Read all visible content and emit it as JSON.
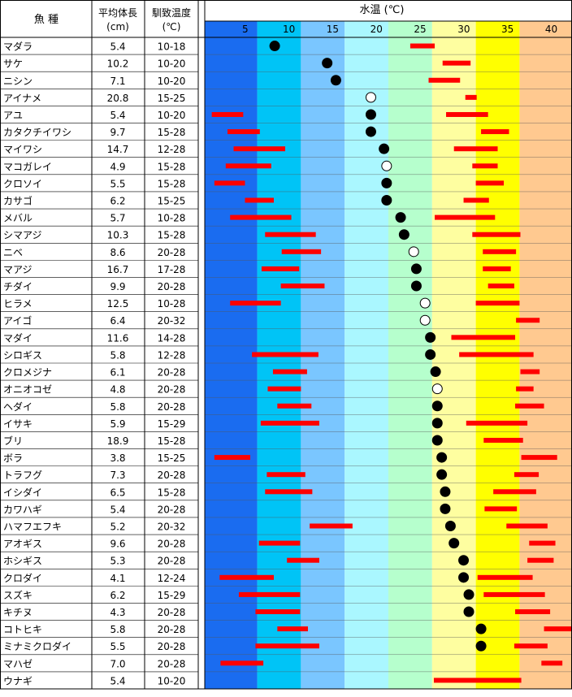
{
  "table": {
    "headers": {
      "fish": "魚 種",
      "length_line1": "平均体長",
      "length_line2": "(cm)",
      "temp_line1": "馴致温度",
      "temp_line2": "(℃)"
    }
  },
  "chart_data": {
    "type": "scatter",
    "title": "水温 (℃)",
    "xlabel": "水温 (℃)",
    "xlim": [
      0,
      42
    ],
    "x_ticks": [
      "5",
      "10",
      "15",
      "20",
      "25",
      "30",
      "35",
      "40"
    ],
    "zone_colors": [
      "#1a6cf0",
      "#00c4f6",
      "#7ac6ff",
      "#aaf7ff",
      "#b6ffcd",
      "#fefea0",
      "#ffff00",
      "#ffc990"
    ],
    "zone_bounds": [
      0,
      6,
      11,
      16,
      21,
      26,
      31,
      36,
      42
    ],
    "marker_colors": {
      "filled": "#000000",
      "open": "#ffffff",
      "range": "#ff0000"
    },
    "rows": [
      {
        "name": "マダラ",
        "length": "5.4",
        "accl": "10-18",
        "point": 8.0,
        "filled": true,
        "range": [
          23.5,
          26.3
        ]
      },
      {
        "name": "サケ",
        "length": "10.2",
        "accl": "10-20",
        "point": 14.0,
        "filled": true,
        "range": [
          27.2,
          30.4
        ]
      },
      {
        "name": "ニシン",
        "length": "7.1",
        "accl": "10-20",
        "point": 15.0,
        "filled": true,
        "range": [
          25.6,
          29.2
        ]
      },
      {
        "name": "アイナメ",
        "length": "20.8",
        "accl": "15-25",
        "point": 19.0,
        "filled": false,
        "range": [
          29.8,
          31.1
        ]
      },
      {
        "name": "アユ",
        "length": "5.4",
        "accl": "10-20",
        "point": 19.0,
        "filled": true,
        "range": [
          0.8,
          4.4
        ]
      },
      {
        "name": "アユ_2",
        "length": "",
        "accl": "",
        "point": null,
        "filled": null,
        "range": [
          27.6,
          32.4
        ]
      },
      {
        "name": "カタクチイワシ",
        "length": "9.7",
        "accl": "15-28",
        "point": 19.0,
        "filled": true,
        "range": [
          2.6,
          6.3
        ]
      },
      {
        "name": "カタクチイワシ_2",
        "length": "",
        "accl": "",
        "point": null,
        "filled": null,
        "range": [
          31.6,
          34.8
        ]
      },
      {
        "name": "マイワシ",
        "length": "14.7",
        "accl": "12-28",
        "point": 20.5,
        "filled": true,
        "range": [
          3.3,
          9.2
        ]
      },
      {
        "name": "マイワシ_2",
        "length": "",
        "accl": "",
        "point": null,
        "filled": null,
        "range": [
          28.5,
          33.5
        ]
      },
      {
        "name": "マコガレイ",
        "length": "4.9",
        "accl": "15-28",
        "point": 20.8,
        "filled": false,
        "range": [
          2.4,
          7.6
        ]
      },
      {
        "name": "マコガレイ_2",
        "length": "",
        "accl": "",
        "point": null,
        "filled": null,
        "range": [
          30.6,
          33.5
        ]
      },
      {
        "name": "クロソイ",
        "length": "5.5",
        "accl": "15-28",
        "point": 20.8,
        "filled": true,
        "range": [
          1.1,
          4.6
        ]
      },
      {
        "name": "クロソイ_2",
        "length": "",
        "accl": "",
        "point": null,
        "filled": null,
        "range": [
          31.0,
          34.2
        ]
      },
      {
        "name": "カサゴ",
        "length": "6.2",
        "accl": "15-25",
        "point": 20.8,
        "filled": true,
        "range": [
          4.6,
          7.9
        ]
      },
      {
        "name": "カサゴ_2",
        "length": "",
        "accl": "",
        "point": null,
        "filled": null,
        "range": [
          29.6,
          32.5
        ]
      },
      {
        "name": "メバル",
        "length": "5.7",
        "accl": "10-28",
        "point": 22.4,
        "filled": true,
        "range": [
          2.9,
          9.9
        ]
      },
      {
        "name": "メバル_2",
        "length": "",
        "accl": "",
        "point": null,
        "filled": null,
        "range": [
          26.3,
          33.2
        ]
      },
      {
        "name": "シマアジ",
        "length": "10.3",
        "accl": "15-28",
        "point": 22.8,
        "filled": true,
        "range": [
          6.9,
          12.7
        ]
      },
      {
        "name": "シマアジ_2",
        "length": "",
        "accl": "",
        "point": null,
        "filled": null,
        "range": [
          30.6,
          36.1
        ]
      },
      {
        "name": "ニベ",
        "length": "8.6",
        "accl": "20-28",
        "point": 23.9,
        "filled": false,
        "range": [
          8.8,
          13.3
        ]
      },
      {
        "name": "ニベ_2",
        "length": "",
        "accl": "",
        "point": null,
        "filled": null,
        "range": [
          31.8,
          35.6
        ]
      },
      {
        "name": "マアジ",
        "length": "16.7",
        "accl": "17-28",
        "point": 24.2,
        "filled": true,
        "range": [
          6.5,
          10.8
        ]
      },
      {
        "name": "マアジ_2",
        "length": "",
        "accl": "",
        "point": null,
        "filled": null,
        "range": [
          31.8,
          35.0
        ]
      },
      {
        "name": "チダイ",
        "length": "9.9",
        "accl": "20-28",
        "point": 24.2,
        "filled": true,
        "range": [
          8.7,
          13.7
        ]
      },
      {
        "name": "チダイ_2",
        "length": "",
        "accl": "",
        "point": null,
        "filled": null,
        "range": [
          32.4,
          35.4
        ]
      },
      {
        "name": "ヒラメ",
        "length": "12.5",
        "accl": "10-28",
        "point": 25.2,
        "filled": false,
        "range": [
          2.9,
          8.7
        ]
      },
      {
        "name": "ヒラメ_2",
        "length": "",
        "accl": "",
        "point": null,
        "filled": null,
        "range": [
          31.0,
          36.0
        ]
      },
      {
        "name": "アイゴ",
        "length": "6.4",
        "accl": "20-32",
        "point": 25.2,
        "filled": false,
        "range": [
          35.6,
          38.3
        ]
      },
      {
        "name": "マダイ",
        "length": "11.6",
        "accl": "14-28",
        "point": 25.8,
        "filled": true,
        "range": [
          28.2,
          35.5
        ]
      },
      {
        "name": "シロギス",
        "length": "5.8",
        "accl": "12-28",
        "point": 25.8,
        "filled": true,
        "range": [
          5.4,
          13.0
        ]
      },
      {
        "name": "シロギス_2",
        "length": "",
        "accl": "",
        "point": null,
        "filled": null,
        "range": [
          29.1,
          37.6
        ]
      },
      {
        "name": "クロメジナ",
        "length": "6.1",
        "accl": "20-28",
        "point": 26.4,
        "filled": true,
        "range": [
          7.8,
          11.7
        ]
      },
      {
        "name": "クロメジナ_2",
        "length": "",
        "accl": "",
        "point": null,
        "filled": null,
        "range": [
          36.1,
          38.3
        ]
      },
      {
        "name": "オニオコゼ",
        "length": "4.8",
        "accl": "20-28",
        "point": 26.6,
        "filled": false,
        "range": [
          7.2,
          11.0
        ]
      },
      {
        "name": "オニオコゼ_2",
        "length": "",
        "accl": "",
        "point": null,
        "filled": null,
        "range": [
          35.6,
          37.6
        ]
      },
      {
        "name": "ヘダイ",
        "length": "5.8",
        "accl": "20-28",
        "point": 26.6,
        "filled": true,
        "range": [
          8.3,
          12.2
        ]
      },
      {
        "name": "ヘダイ_2",
        "length": "",
        "accl": "",
        "point": null,
        "filled": null,
        "range": [
          35.5,
          38.8
        ]
      },
      {
        "name": "イサキ",
        "length": "5.9",
        "accl": "15-29",
        "point": 26.6,
        "filled": true,
        "range": [
          6.4,
          13.1
        ]
      },
      {
        "name": "イサキ_2",
        "length": "",
        "accl": "",
        "point": null,
        "filled": null,
        "range": [
          29.9,
          36.9
        ]
      },
      {
        "name": "ブリ",
        "length": "18.9",
        "accl": "15-28",
        "point": 26.6,
        "filled": true,
        "range": [
          31.9,
          36.4
        ]
      },
      {
        "name": "ボラ",
        "length": "3.8",
        "accl": "15-25",
        "point": 27.1,
        "filled": true,
        "range": [
          1.1,
          5.2
        ]
      },
      {
        "name": "ボラ_2",
        "length": "",
        "accl": "",
        "point": null,
        "filled": null,
        "range": [
          36.2,
          40.3
        ]
      },
      {
        "name": "トラフグ",
        "length": "7.3",
        "accl": "20-28",
        "point": 27.1,
        "filled": true,
        "range": [
          7.1,
          11.5
        ]
      },
      {
        "name": "トラフグ_2",
        "length": "",
        "accl": "",
        "point": null,
        "filled": null,
        "range": [
          35.4,
          38.2
        ]
      },
      {
        "name": "イシダイ",
        "length": "6.5",
        "accl": "15-28",
        "point": 27.5,
        "filled": true,
        "range": [
          6.9,
          12.3
        ]
      },
      {
        "name": "イシダイ_2",
        "length": "",
        "accl": "",
        "point": null,
        "filled": null,
        "range": [
          33.0,
          37.9
        ]
      },
      {
        "name": "カワハギ",
        "length": "5.4",
        "accl": "20-28",
        "point": 27.5,
        "filled": true,
        "range": [
          32.0,
          35.7
        ]
      },
      {
        "name": "ハマフエフキ",
        "length": "5.2",
        "accl": "20-32",
        "point": 28.1,
        "filled": true,
        "range": [
          12.0,
          16.9
        ]
      },
      {
        "name": "ハマフエフキ_2",
        "length": "",
        "accl": "",
        "point": null,
        "filled": null,
        "range": [
          34.5,
          39.2
        ]
      },
      {
        "name": "アオギス",
        "length": "9.6",
        "accl": "20-28",
        "point": 28.5,
        "filled": true,
        "range": [
          6.2,
          10.9
        ]
      },
      {
        "name": "アオギス_2",
        "length": "",
        "accl": "",
        "point": null,
        "filled": null,
        "range": [
          37.1,
          40.1
        ]
      },
      {
        "name": "ホシギス",
        "length": "5.3",
        "accl": "20-28",
        "point": 29.6,
        "filled": true,
        "range": [
          9.4,
          13.1
        ]
      },
      {
        "name": "ホシギス_2",
        "length": "",
        "accl": "",
        "point": null,
        "filled": null,
        "range": [
          36.9,
          39.9
        ]
      },
      {
        "name": "クロダイ",
        "length": "4.1",
        "accl": "12-24",
        "point": 29.6,
        "filled": true,
        "range": [
          1.7,
          7.9
        ]
      },
      {
        "name": "クロダイ_2",
        "length": "",
        "accl": "",
        "point": null,
        "filled": null,
        "range": [
          31.2,
          37.5
        ]
      },
      {
        "name": "スズキ",
        "length": "6.2",
        "accl": "15-29",
        "point": 30.2,
        "filled": true,
        "range": [
          3.9,
          10.9
        ]
      },
      {
        "name": "スズキ_2",
        "length": "",
        "accl": "",
        "point": null,
        "filled": null,
        "range": [
          31.9,
          38.9
        ]
      },
      {
        "name": "キチヌ",
        "length": "4.3",
        "accl": "20-28",
        "point": 30.2,
        "filled": true,
        "range": [
          5.8,
          10.9
        ]
      },
      {
        "name": "キチヌ_2",
        "length": "",
        "accl": "",
        "point": null,
        "filled": null,
        "range": [
          35.5,
          39.5
        ]
      },
      {
        "name": "コトヒキ",
        "length": "5.8",
        "accl": "20-28",
        "point": 31.6,
        "filled": true,
        "range": [
          8.3,
          11.8
        ]
      },
      {
        "name": "コトヒキ_2",
        "length": "",
        "accl": "",
        "point": null,
        "filled": null,
        "range": [
          38.8,
          42.0
        ]
      },
      {
        "name": "ミナミクロダイ",
        "length": "5.5",
        "accl": "20-28",
        "point": 31.6,
        "filled": true,
        "range": [
          5.8,
          13.1
        ]
      },
      {
        "name": "ミナミクロダイ_2",
        "length": "",
        "accl": "",
        "point": null,
        "filled": null,
        "range": [
          35.4,
          39.2
        ]
      },
      {
        "name": "マハゼ",
        "length": "7.0",
        "accl": "20-28",
        "point": null,
        "filled": null,
        "range": [
          1.8,
          6.7
        ]
      },
      {
        "name": "マハゼ_2",
        "length": "",
        "accl": "",
        "point": null,
        "filled": null,
        "range": [
          38.5,
          40.9
        ]
      },
      {
        "name": "ウナギ",
        "length": "5.4",
        "accl": "10-20",
        "point": null,
        "filled": null,
        "range": [
          26.2,
          36.2
        ]
      }
    ]
  }
}
